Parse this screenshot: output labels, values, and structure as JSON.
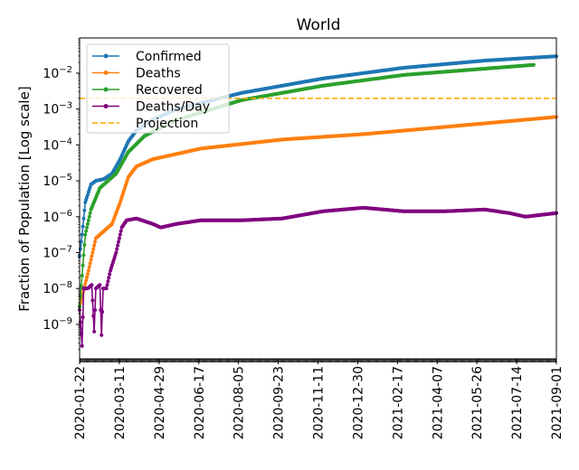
{
  "chart_data": {
    "type": "line",
    "title": "World",
    "xlabel": "",
    "ylabel": "Fraction of Population [Log scale]",
    "yscale": "log",
    "ylim_log10": [
      -9.96,
      -1.02
    ],
    "x_start_date": "2020-01-22",
    "x_total_days": 588,
    "xtick_labels": [
      "2020-01-22",
      "2020-03-11",
      "2020-04-29",
      "2020-06-17",
      "2020-08-05",
      "2020-09-23",
      "2020-11-11",
      "2020-12-30",
      "2021-02-17",
      "2021-04-07",
      "2021-05-26",
      "2021-07-14",
      "2021-09-01"
    ],
    "xtick_days": [
      0,
      49,
      98,
      147,
      196,
      245,
      294,
      343,
      392,
      441,
      490,
      539,
      588
    ],
    "ytick_labels": [
      {
        "base": "10",
        "exp": "−2",
        "log10": -2
      },
      {
        "base": "10",
        "exp": "−3",
        "log10": -3
      },
      {
        "base": "10",
        "exp": "−4",
        "log10": -4
      },
      {
        "base": "10",
        "exp": "−5",
        "log10": -5
      },
      {
        "base": "10",
        "exp": "−6",
        "log10": -6
      },
      {
        "base": "10",
        "exp": "−7",
        "log10": -7
      },
      {
        "base": "10",
        "exp": "−8",
        "log10": -8
      },
      {
        "base": "10",
        "exp": "−9",
        "log10": -9
      }
    ],
    "legend_position": "top-left",
    "series": [
      {
        "name": "Confirmed",
        "color": "#1f77b4",
        "style": "line-marker",
        "points_day_log10": [
          [
            0,
            -7.1
          ],
          [
            3,
            -6.5
          ],
          [
            7,
            -5.6
          ],
          [
            14,
            -5.1
          ],
          [
            20,
            -5.0
          ],
          [
            30,
            -4.95
          ],
          [
            40,
            -4.8
          ],
          [
            50,
            -4.4
          ],
          [
            60,
            -3.9
          ],
          [
            70,
            -3.6
          ],
          [
            90,
            -3.3
          ],
          [
            120,
            -3.0
          ],
          [
            200,
            -2.55
          ],
          [
            300,
            -2.15
          ],
          [
            400,
            -1.85
          ],
          [
            500,
            -1.65
          ],
          [
            588,
            -1.53
          ]
        ]
      },
      {
        "name": "Deaths",
        "color": "#ff7f0e",
        "style": "line-marker",
        "points_day_log10": [
          [
            0,
            -8.5
          ],
          [
            10,
            -7.6
          ],
          [
            20,
            -6.6
          ],
          [
            30,
            -6.4
          ],
          [
            40,
            -6.2
          ],
          [
            50,
            -5.6
          ],
          [
            60,
            -4.9
          ],
          [
            70,
            -4.6
          ],
          [
            90,
            -4.4
          ],
          [
            150,
            -4.1
          ],
          [
            250,
            -3.85
          ],
          [
            350,
            -3.7
          ],
          [
            450,
            -3.5
          ],
          [
            588,
            -3.22
          ]
        ]
      },
      {
        "name": "Recovered",
        "color": "#2ca02c",
        "style": "line-marker",
        "points_day_log10": [
          [
            0,
            -8.5
          ],
          [
            7,
            -6.5
          ],
          [
            14,
            -5.8
          ],
          [
            25,
            -5.2
          ],
          [
            35,
            -5.0
          ],
          [
            45,
            -4.8
          ],
          [
            60,
            -4.2
          ],
          [
            80,
            -3.75
          ],
          [
            120,
            -3.3
          ],
          [
            200,
            -2.75
          ],
          [
            300,
            -2.35
          ],
          [
            400,
            -2.05
          ],
          [
            560,
            -1.77
          ]
        ]
      },
      {
        "name": "Deaths/Day",
        "color": "#800080",
        "style": "line-marker",
        "points_day_log10": [
          [
            0,
            -8.6
          ],
          [
            3,
            -9.6
          ],
          [
            5,
            -8.0
          ],
          [
            10,
            -8.0
          ],
          [
            15,
            -7.9
          ],
          [
            18,
            -9.2
          ],
          [
            20,
            -8.0
          ],
          [
            25,
            -7.9
          ],
          [
            27,
            -9.3
          ],
          [
            29,
            -8.0
          ],
          [
            33,
            -8.0
          ],
          [
            38,
            -7.5
          ],
          [
            45,
            -7.0
          ],
          [
            52,
            -6.3
          ],
          [
            58,
            -6.1
          ],
          [
            70,
            -6.05
          ],
          [
            90,
            -6.2
          ],
          [
            100,
            -6.3
          ],
          [
            120,
            -6.2
          ],
          [
            150,
            -6.1
          ],
          [
            200,
            -6.1
          ],
          [
            250,
            -6.05
          ],
          [
            300,
            -5.85
          ],
          [
            350,
            -5.75
          ],
          [
            400,
            -5.85
          ],
          [
            450,
            -5.85
          ],
          [
            500,
            -5.8
          ],
          [
            530,
            -5.9
          ],
          [
            550,
            -6.0
          ],
          [
            588,
            -5.9
          ]
        ]
      },
      {
        "name": "Projection",
        "color": "#ffa500",
        "style": "dashed",
        "points_day_log10": [
          [
            0,
            -2.7
          ],
          [
            588,
            -2.7
          ]
        ]
      }
    ]
  }
}
